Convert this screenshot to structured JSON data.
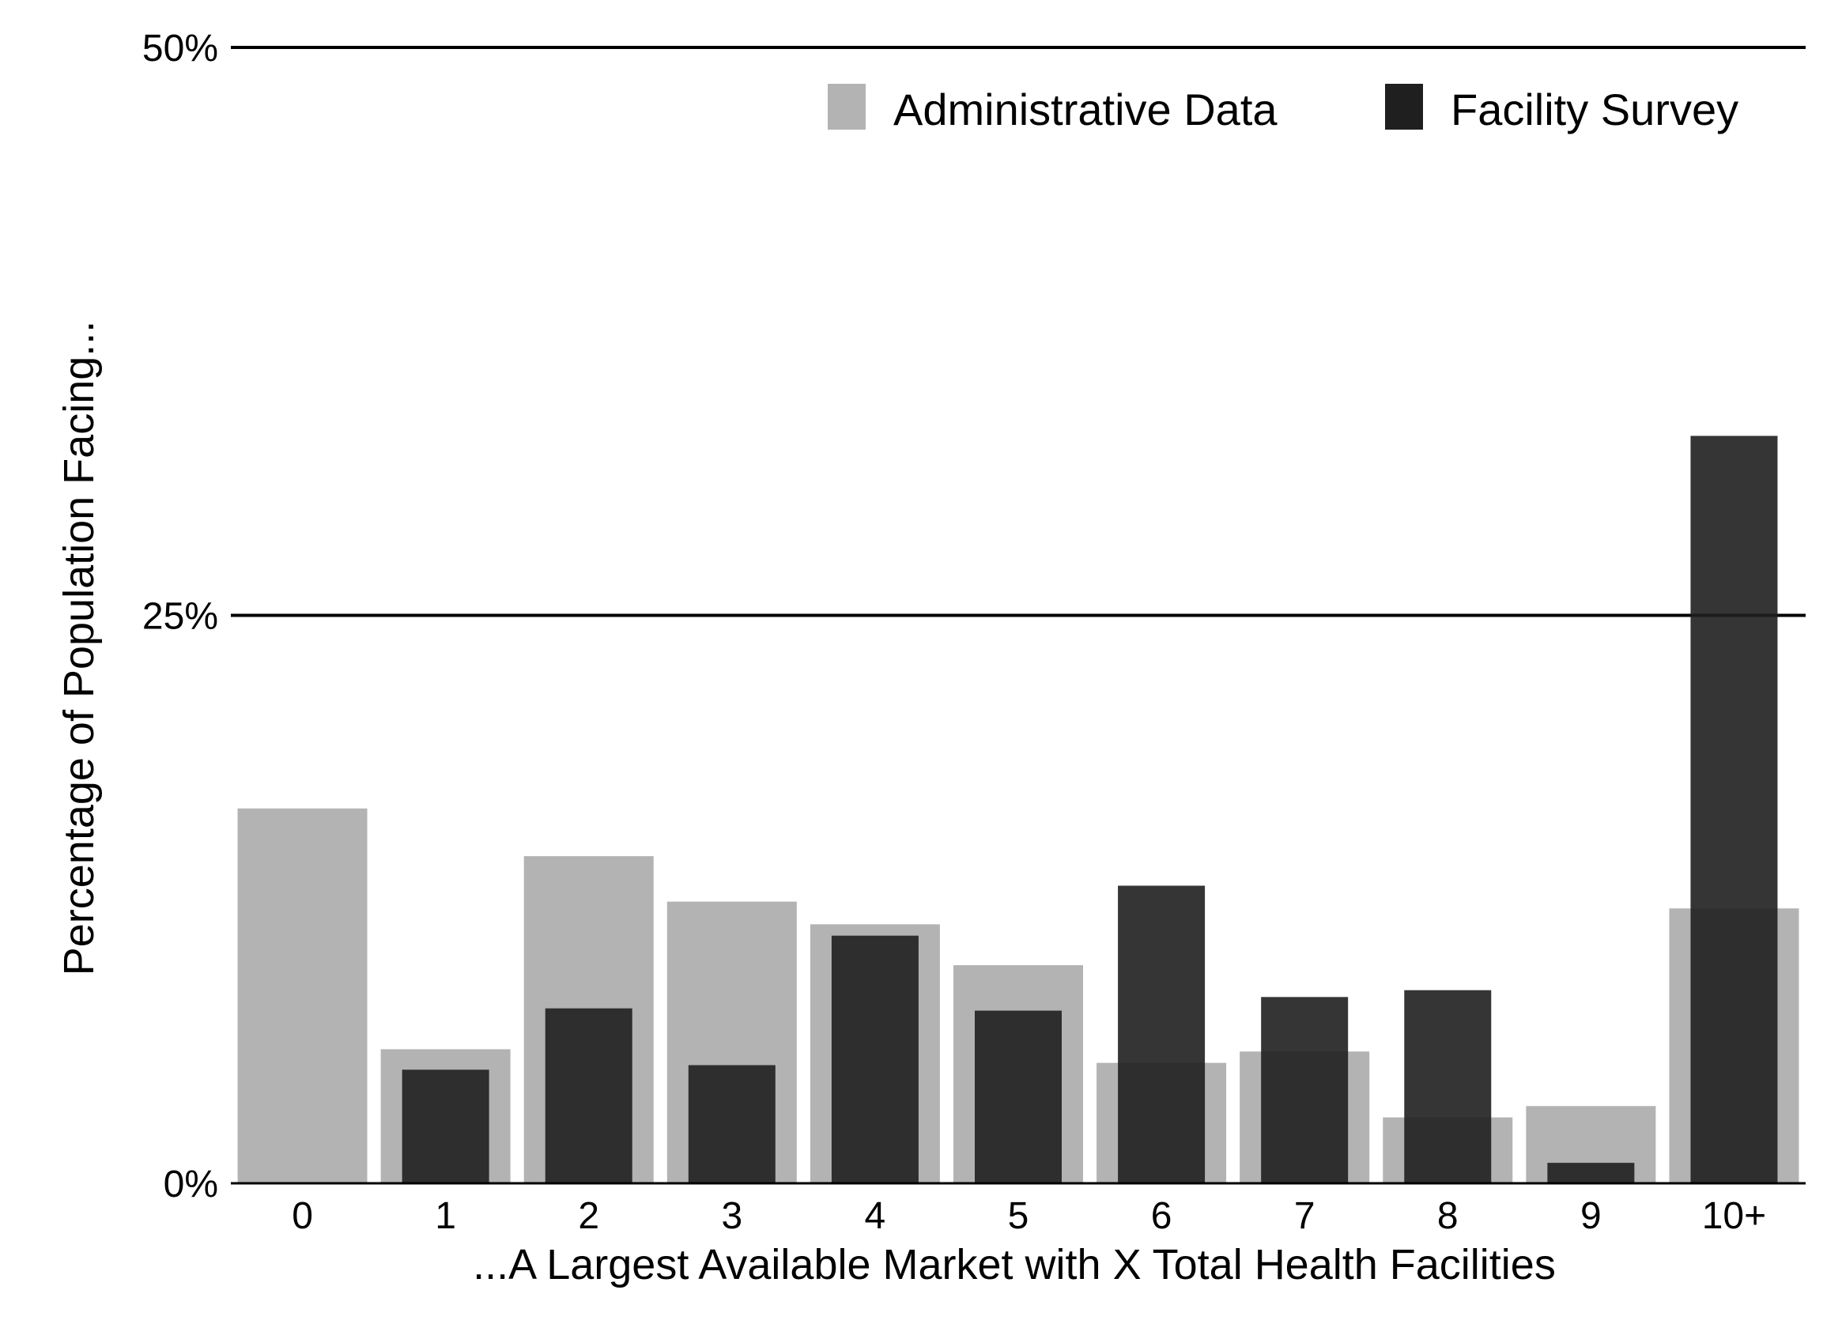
{
  "chart_data": {
    "type": "bar",
    "title": "",
    "xlabel": "...A Largest Available Market with X Total Health Facilities",
    "ylabel": "Percentage of Population Facing...",
    "categories": [
      "0",
      "1",
      "2",
      "3",
      "4",
      "5",
      "6",
      "7",
      "8",
      "9",
      "10+"
    ],
    "series": [
      {
        "name": "Administrative Data",
        "color": "#b3b3b3",
        "values": [
          16.5,
          5.9,
          14.4,
          12.4,
          11.4,
          9.6,
          5.3,
          5.8,
          2.9,
          3.4,
          12.1
        ]
      },
      {
        "name": "Facility Survey",
        "color": "#1f1f1f",
        "values": [
          0,
          5.0,
          7.7,
          5.2,
          10.9,
          7.6,
          13.1,
          8.2,
          8.5,
          0.9,
          32.9
        ]
      }
    ],
    "ylim": [
      0,
      50
    ],
    "yticks": [
      0,
      25,
      50
    ],
    "ytick_labels": [
      "0%",
      "25%",
      "50%"
    ],
    "grid": "horizontal lines at 25% and 50%",
    "legend_placement": "top-right"
  }
}
